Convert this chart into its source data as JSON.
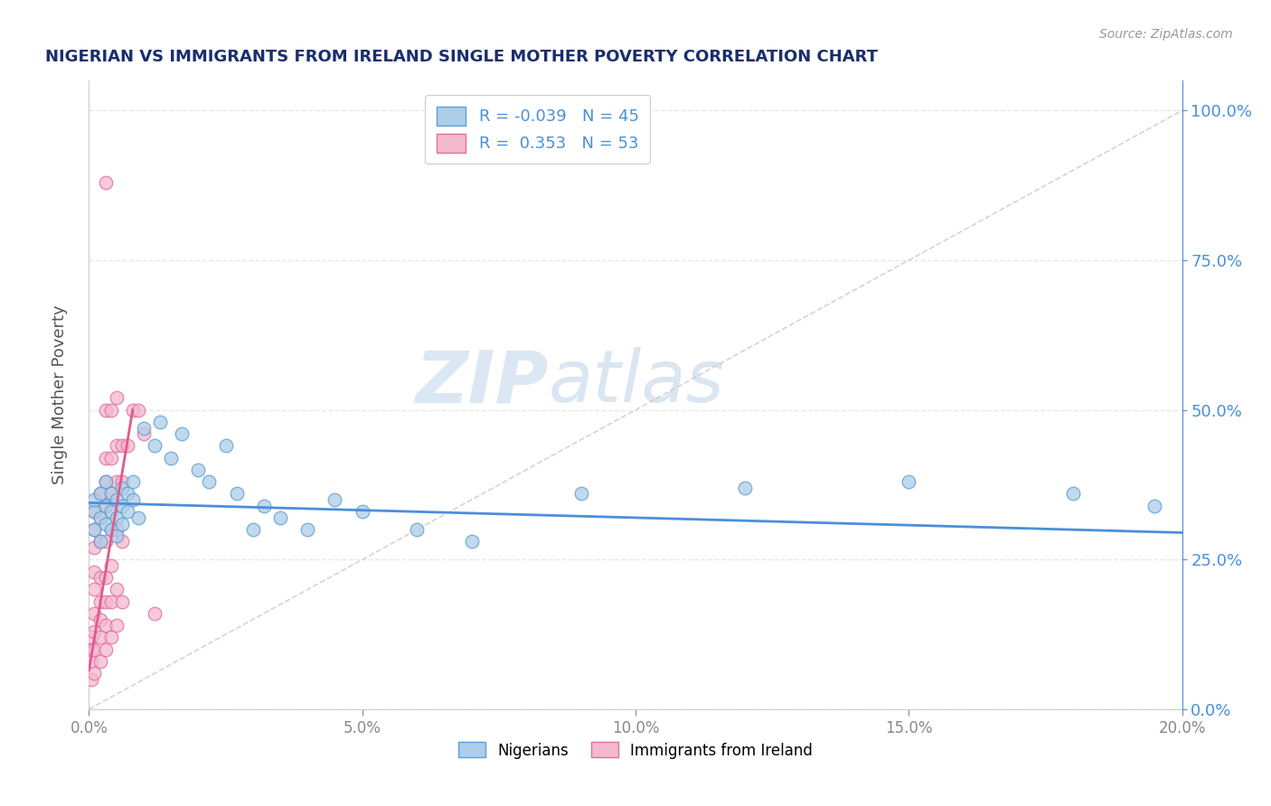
{
  "title": "NIGERIAN VS IMMIGRANTS FROM IRELAND SINGLE MOTHER POVERTY CORRELATION CHART",
  "source": "Source: ZipAtlas.com",
  "ylabel_label": "Single Mother Poverty",
  "x_min": 0.0,
  "x_max": 0.2,
  "y_min": 0.0,
  "y_max": 1.05,
  "blue_R": -0.039,
  "blue_N": 45,
  "pink_R": 0.353,
  "pink_N": 53,
  "legend_blue_label": "Nigerians",
  "legend_pink_label": "Immigrants from Ireland",
  "watermark_zip": "ZIP",
  "watermark_atlas": "atlas",
  "blue_scatter": [
    [
      0.001,
      0.33
    ],
    [
      0.001,
      0.3
    ],
    [
      0.001,
      0.35
    ],
    [
      0.002,
      0.32
    ],
    [
      0.002,
      0.36
    ],
    [
      0.002,
      0.28
    ],
    [
      0.003,
      0.34
    ],
    [
      0.003,
      0.31
    ],
    [
      0.003,
      0.38
    ],
    [
      0.004,
      0.33
    ],
    [
      0.004,
      0.3
    ],
    [
      0.004,
      0.36
    ],
    [
      0.005,
      0.35
    ],
    [
      0.005,
      0.32
    ],
    [
      0.005,
      0.29
    ],
    [
      0.006,
      0.34
    ],
    [
      0.006,
      0.37
    ],
    [
      0.006,
      0.31
    ],
    [
      0.007,
      0.36
    ],
    [
      0.007,
      0.33
    ],
    [
      0.008,
      0.38
    ],
    [
      0.008,
      0.35
    ],
    [
      0.009,
      0.32
    ],
    [
      0.01,
      0.47
    ],
    [
      0.012,
      0.44
    ],
    [
      0.013,
      0.48
    ],
    [
      0.015,
      0.42
    ],
    [
      0.017,
      0.46
    ],
    [
      0.02,
      0.4
    ],
    [
      0.022,
      0.38
    ],
    [
      0.025,
      0.44
    ],
    [
      0.027,
      0.36
    ],
    [
      0.03,
      0.3
    ],
    [
      0.032,
      0.34
    ],
    [
      0.035,
      0.32
    ],
    [
      0.04,
      0.3
    ],
    [
      0.045,
      0.35
    ],
    [
      0.05,
      0.33
    ],
    [
      0.06,
      0.3
    ],
    [
      0.07,
      0.28
    ],
    [
      0.09,
      0.36
    ],
    [
      0.12,
      0.37
    ],
    [
      0.15,
      0.38
    ],
    [
      0.18,
      0.36
    ],
    [
      0.195,
      0.34
    ]
  ],
  "pink_scatter": [
    [
      0.0005,
      0.05
    ],
    [
      0.0005,
      0.08
    ],
    [
      0.0005,
      0.1
    ],
    [
      0.0005,
      0.12
    ],
    [
      0.001,
      0.06
    ],
    [
      0.001,
      0.1
    ],
    [
      0.001,
      0.13
    ],
    [
      0.001,
      0.16
    ],
    [
      0.001,
      0.2
    ],
    [
      0.001,
      0.23
    ],
    [
      0.001,
      0.27
    ],
    [
      0.001,
      0.3
    ],
    [
      0.001,
      0.33
    ],
    [
      0.002,
      0.08
    ],
    [
      0.002,
      0.12
    ],
    [
      0.002,
      0.15
    ],
    [
      0.002,
      0.18
    ],
    [
      0.002,
      0.22
    ],
    [
      0.002,
      0.28
    ],
    [
      0.002,
      0.32
    ],
    [
      0.002,
      0.36
    ],
    [
      0.003,
      0.1
    ],
    [
      0.003,
      0.14
    ],
    [
      0.003,
      0.18
    ],
    [
      0.003,
      0.22
    ],
    [
      0.003,
      0.28
    ],
    [
      0.003,
      0.34
    ],
    [
      0.003,
      0.38
    ],
    [
      0.003,
      0.42
    ],
    [
      0.003,
      0.5
    ],
    [
      0.003,
      0.88
    ],
    [
      0.004,
      0.12
    ],
    [
      0.004,
      0.18
    ],
    [
      0.004,
      0.24
    ],
    [
      0.004,
      0.3
    ],
    [
      0.004,
      0.36
    ],
    [
      0.004,
      0.42
    ],
    [
      0.004,
      0.5
    ],
    [
      0.005,
      0.14
    ],
    [
      0.005,
      0.2
    ],
    [
      0.005,
      0.3
    ],
    [
      0.005,
      0.38
    ],
    [
      0.005,
      0.44
    ],
    [
      0.005,
      0.52
    ],
    [
      0.006,
      0.18
    ],
    [
      0.006,
      0.28
    ],
    [
      0.006,
      0.38
    ],
    [
      0.006,
      0.44
    ],
    [
      0.007,
      0.44
    ],
    [
      0.008,
      0.5
    ],
    [
      0.009,
      0.5
    ],
    [
      0.01,
      0.46
    ],
    [
      0.012,
      0.16
    ]
  ],
  "blue_line_color": "#4a90d9",
  "pink_line_color": "#e05a8a",
  "scatter_blue_facecolor": "#aecde8",
  "scatter_pink_facecolor": "#f4b8cf",
  "scatter_blue_edgecolor": "#5b9fd4",
  "scatter_pink_edgecolor": "#e07099",
  "diag_line_color": "#d0c8c8",
  "bg_color": "#ffffff",
  "grid_color": "#e8e8e8",
  "title_color": "#1a2e6e",
  "source_color": "#999999",
  "right_axis_color": "#4a90d9"
}
